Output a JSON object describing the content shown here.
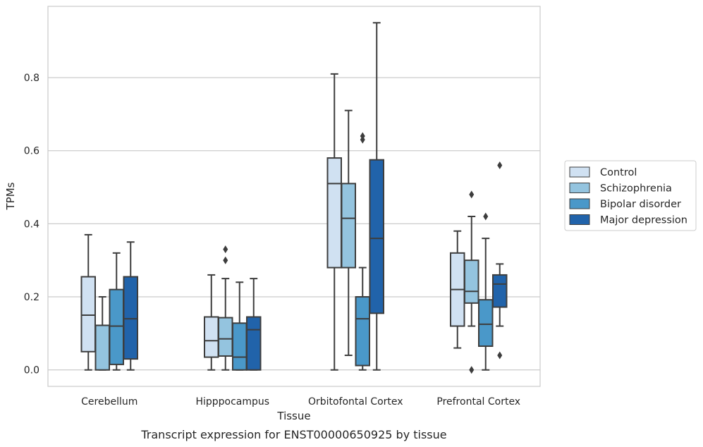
{
  "chart_data": {
    "type": "box",
    "caption": "Transcript expression for ENST00000650925 by tissue",
    "xlabel": "Tissue",
    "ylabel": "TPMs",
    "categories": [
      "Cerebellum",
      "Hipppocampus",
      "Orbitofontal Cortex",
      "Prefrontal Cortex"
    ],
    "ylim": [
      -0.045,
      0.995
    ],
    "yticks": [
      "0.0",
      "0.2",
      "0.4",
      "0.6",
      "0.8"
    ],
    "grid": "horizontal",
    "legend_position": "right",
    "series": [
      {
        "name": "Control",
        "color": "#d0e1f2",
        "boxes": [
          {
            "whisker_low": 0.0,
            "q1": 0.05,
            "median": 0.15,
            "q3": 0.255,
            "whisker_high": 0.37,
            "outliers": []
          },
          {
            "whisker_low": 0.0,
            "q1": 0.035,
            "median": 0.08,
            "q3": 0.145,
            "whisker_high": 0.26,
            "outliers": []
          },
          {
            "whisker_low": 0.0,
            "q1": 0.28,
            "median": 0.51,
            "q3": 0.58,
            "whisker_high": 0.81,
            "outliers": []
          },
          {
            "whisker_low": 0.06,
            "q1": 0.12,
            "median": 0.22,
            "q3": 0.32,
            "whisker_high": 0.38,
            "outliers": []
          }
        ]
      },
      {
        "name": "Schizophrenia",
        "color": "#94c4df",
        "boxes": [
          {
            "whisker_low": 0.0,
            "q1": 0.0,
            "median": 0.122,
            "q3": 0.122,
            "whisker_high": 0.2,
            "outliers": []
          },
          {
            "whisker_low": 0.0,
            "q1": 0.038,
            "median": 0.085,
            "q3": 0.143,
            "whisker_high": 0.25,
            "outliers": [
              0.3,
              0.33
            ]
          },
          {
            "whisker_low": 0.04,
            "q1": 0.28,
            "median": 0.415,
            "q3": 0.51,
            "whisker_high": 0.71,
            "outliers": []
          },
          {
            "whisker_low": 0.12,
            "q1": 0.183,
            "median": 0.215,
            "q3": 0.3,
            "whisker_high": 0.42,
            "outliers": [
              0.0,
              0.48
            ]
          }
        ]
      },
      {
        "name": "Bipolar disorder",
        "color": "#4a98c9",
        "boxes": [
          {
            "whisker_low": 0.0,
            "q1": 0.015,
            "median": 0.12,
            "q3": 0.22,
            "whisker_high": 0.32,
            "outliers": []
          },
          {
            "whisker_low": 0.0,
            "q1": 0.0,
            "median": 0.035,
            "q3": 0.128,
            "whisker_high": 0.24,
            "outliers": []
          },
          {
            "whisker_low": 0.0,
            "q1": 0.012,
            "median": 0.14,
            "q3": 0.2,
            "whisker_high": 0.28,
            "outliers": [
              0.63,
              0.64
            ]
          },
          {
            "whisker_low": 0.0,
            "q1": 0.065,
            "median": 0.125,
            "q3": 0.192,
            "whisker_high": 0.36,
            "outliers": [
              0.42
            ]
          }
        ]
      },
      {
        "name": "Major depression",
        "color": "#2163aa",
        "boxes": [
          {
            "whisker_low": 0.0,
            "q1": 0.03,
            "median": 0.14,
            "q3": 0.255,
            "whisker_high": 0.35,
            "outliers": []
          },
          {
            "whisker_low": 0.0,
            "q1": 0.0,
            "median": 0.11,
            "q3": 0.145,
            "whisker_high": 0.25,
            "outliers": []
          },
          {
            "whisker_low": 0.0,
            "q1": 0.155,
            "median": 0.36,
            "q3": 0.575,
            "whisker_high": 0.95,
            "outliers": []
          },
          {
            "whisker_low": 0.12,
            "q1": 0.172,
            "median": 0.235,
            "q3": 0.26,
            "whisker_high": 0.29,
            "outliers": [
              0.04,
              0.56
            ]
          }
        ]
      }
    ]
  }
}
